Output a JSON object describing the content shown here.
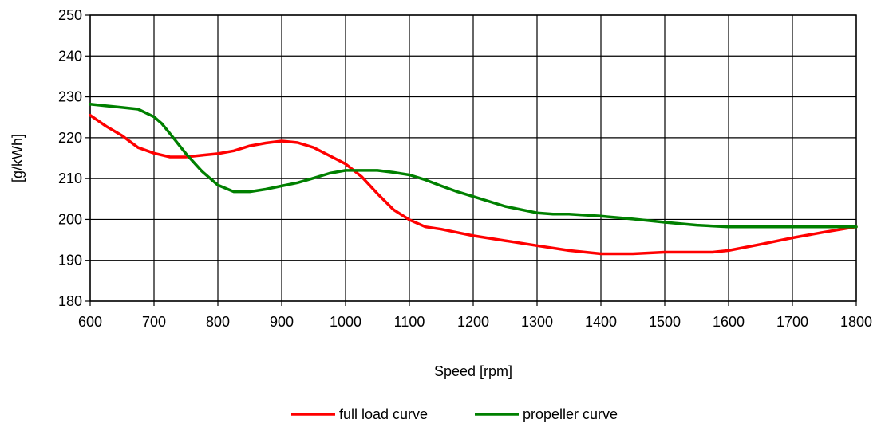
{
  "chart_data": {
    "type": "line",
    "title": "",
    "xlabel": "Speed [rpm]",
    "ylabel": "[g/kWh]",
    "xlim": [
      600,
      1800
    ],
    "ylim": [
      180,
      250
    ],
    "x_ticks": [
      "600",
      "700",
      "800",
      "900",
      "1000",
      "1100",
      "1200",
      "1300",
      "1400",
      "1500",
      "1600",
      "1700",
      "1800"
    ],
    "y_ticks": [
      "180",
      "190",
      "200",
      "210",
      "220",
      "230",
      "240",
      "250"
    ],
    "grid": true,
    "legend_position": "bottom-center",
    "series": [
      {
        "name": "full load curve",
        "color": "#ff0000",
        "points": [
          [
            600,
            225.5
          ],
          [
            625,
            222.8
          ],
          [
            650,
            220.5
          ],
          [
            675,
            217.6
          ],
          [
            700,
            216.2
          ],
          [
            725,
            215.3
          ],
          [
            750,
            215.3
          ],
          [
            775,
            215.7
          ],
          [
            800,
            216.1
          ],
          [
            825,
            216.8
          ],
          [
            850,
            218.0
          ],
          [
            875,
            218.7
          ],
          [
            900,
            219.2
          ],
          [
            925,
            218.8
          ],
          [
            950,
            217.6
          ],
          [
            975,
            215.6
          ],
          [
            1000,
            213.6
          ],
          [
            1025,
            210.5
          ],
          [
            1050,
            206.3
          ],
          [
            1075,
            202.4
          ],
          [
            1100,
            199.9
          ],
          [
            1125,
            198.2
          ],
          [
            1150,
            197.6
          ],
          [
            1175,
            196.8
          ],
          [
            1200,
            196.0
          ],
          [
            1250,
            194.8
          ],
          [
            1300,
            193.6
          ],
          [
            1350,
            192.4
          ],
          [
            1400,
            191.6
          ],
          [
            1450,
            191.6
          ],
          [
            1500,
            192.0
          ],
          [
            1550,
            192.0
          ],
          [
            1575,
            192.0
          ],
          [
            1600,
            192.4
          ],
          [
            1650,
            193.9
          ],
          [
            1700,
            195.5
          ],
          [
            1750,
            196.9
          ],
          [
            1800,
            198.2
          ]
        ]
      },
      {
        "name": "propeller curve",
        "color": "#008000",
        "points": [
          [
            600,
            228.2
          ],
          [
            625,
            227.8
          ],
          [
            650,
            227.4
          ],
          [
            675,
            227.0
          ],
          [
            700,
            225.1
          ],
          [
            712,
            223.5
          ],
          [
            725,
            221.0
          ],
          [
            750,
            216.1
          ],
          [
            775,
            211.8
          ],
          [
            800,
            208.4
          ],
          [
            825,
            206.8
          ],
          [
            850,
            206.8
          ],
          [
            875,
            207.4
          ],
          [
            900,
            208.2
          ],
          [
            925,
            209.0
          ],
          [
            950,
            210.1
          ],
          [
            975,
            211.3
          ],
          [
            1000,
            212.0
          ],
          [
            1025,
            212.0
          ],
          [
            1050,
            212.0
          ],
          [
            1075,
            211.5
          ],
          [
            1100,
            210.9
          ],
          [
            1125,
            209.7
          ],
          [
            1150,
            208.2
          ],
          [
            1175,
            206.8
          ],
          [
            1200,
            205.6
          ],
          [
            1250,
            203.2
          ],
          [
            1300,
            201.6
          ],
          [
            1325,
            201.3
          ],
          [
            1350,
            201.3
          ],
          [
            1400,
            200.8
          ],
          [
            1450,
            200.1
          ],
          [
            1500,
            199.3
          ],
          [
            1550,
            198.6
          ],
          [
            1600,
            198.2
          ],
          [
            1700,
            198.2
          ],
          [
            1800,
            198.2
          ]
        ]
      }
    ]
  }
}
